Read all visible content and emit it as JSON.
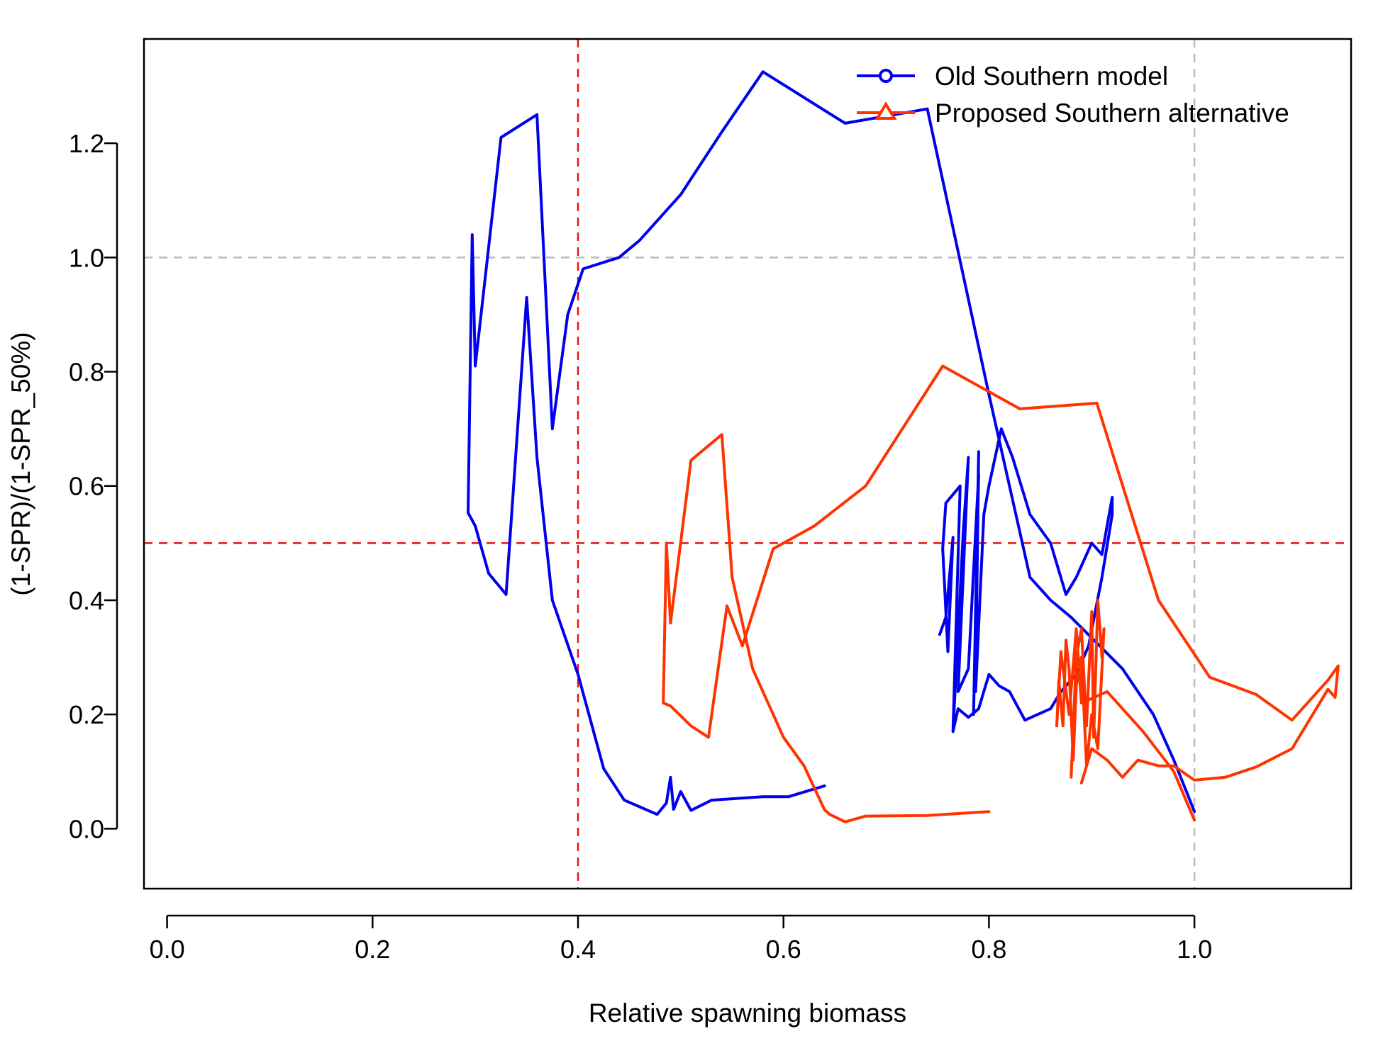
{
  "chart_data": {
    "type": "line",
    "title": "",
    "xlabel": "Relative spawning biomass",
    "ylabel": "(1-SPR)/(1-SPR_50%)",
    "xlim": [
      -0.0225,
      1.1525
    ],
    "ylim": [
      -0.105,
      1.3825
    ],
    "xticks": [
      0.0,
      0.2,
      0.4,
      0.6,
      0.8,
      1.0
    ],
    "xtick_labels": [
      "0.0",
      "0.2",
      "0.4",
      "0.6",
      "0.8",
      "1.0"
    ],
    "yticks": [
      0.0,
      0.2,
      0.4,
      0.6,
      0.8,
      1.0,
      1.2
    ],
    "ytick_labels": [
      "0.0",
      "0.2",
      "0.4",
      "0.6",
      "0.8",
      "1.0",
      "1.2"
    ],
    "grid": false,
    "legend_position": "top-right",
    "reference_lines": [
      {
        "orientation": "vertical",
        "value": 0.4,
        "color": "#ee1111",
        "style": "dashed"
      },
      {
        "orientation": "horizontal",
        "value": 0.5,
        "color": "#ee1111",
        "style": "dashed"
      },
      {
        "orientation": "vertical",
        "value": 1.0,
        "color": "#bbbbbb",
        "style": "dashed"
      },
      {
        "orientation": "horizontal",
        "value": 1.0,
        "color": "#bbbbbb",
        "style": "dashed"
      }
    ],
    "series": [
      {
        "name": "Old Southern model",
        "color": "#0000ee",
        "marker": "circle",
        "points": [
          [
            1.0,
            0.03
          ],
          [
            0.98,
            0.12
          ],
          [
            0.96,
            0.2
          ],
          [
            0.93,
            0.28
          ],
          [
            0.88,
            0.37
          ],
          [
            0.86,
            0.4
          ],
          [
            0.84,
            0.44
          ],
          [
            0.8,
            0.76
          ],
          [
            0.74,
            1.26
          ],
          [
            0.66,
            1.235
          ],
          [
            0.58,
            1.325
          ],
          [
            0.54,
            1.22
          ],
          [
            0.5,
            1.11
          ],
          [
            0.46,
            1.03
          ],
          [
            0.44,
            1.0
          ],
          [
            0.405,
            0.98
          ],
          [
            0.39,
            0.9
          ],
          [
            0.375,
            0.7
          ],
          [
            0.36,
            1.25
          ],
          [
            0.325,
            1.21
          ],
          [
            0.3,
            0.81
          ],
          [
            0.297,
            1.04
          ],
          [
            0.293,
            0.553
          ],
          [
            0.3,
            0.53
          ],
          [
            0.313,
            0.447
          ],
          [
            0.33,
            0.41
          ],
          [
            0.35,
            0.93
          ],
          [
            0.36,
            0.65
          ],
          [
            0.375,
            0.4
          ],
          [
            0.4,
            0.27
          ],
          [
            0.425,
            0.105
          ],
          [
            0.445,
            0.05
          ],
          [
            0.477,
            0.025
          ],
          [
            0.486,
            0.045
          ],
          [
            0.49,
            0.09
          ],
          [
            0.493,
            0.034
          ],
          [
            0.5,
            0.065
          ],
          [
            0.51,
            0.032
          ],
          [
            0.53,
            0.05
          ],
          [
            0.58,
            0.056
          ],
          [
            0.605,
            0.056
          ],
          [
            0.64,
            0.075
          ]
        ],
        "cluster": [
          [
            0.752,
            0.34
          ],
          [
            0.758,
            0.37
          ],
          [
            0.765,
            0.51
          ],
          [
            0.76,
            0.31
          ],
          [
            0.755,
            0.49
          ],
          [
            0.758,
            0.57
          ],
          [
            0.772,
            0.6
          ],
          [
            0.765,
            0.17
          ],
          [
            0.775,
            0.52
          ],
          [
            0.78,
            0.65
          ],
          [
            0.77,
            0.24
          ],
          [
            0.78,
            0.28
          ],
          [
            0.79,
            0.62
          ],
          [
            0.785,
            0.2
          ],
          [
            0.79,
            0.66
          ],
          [
            0.787,
            0.24
          ],
          [
            0.795,
            0.55
          ],
          [
            0.8,
            0.6
          ],
          [
            0.812,
            0.7
          ],
          [
            0.823,
            0.65
          ],
          [
            0.84,
            0.55
          ],
          [
            0.86,
            0.5
          ],
          [
            0.875,
            0.41
          ],
          [
            0.885,
            0.44
          ],
          [
            0.9,
            0.5
          ],
          [
            0.91,
            0.48
          ],
          [
            0.92,
            0.58
          ],
          [
            0.92,
            0.55
          ],
          [
            0.91,
            0.44
          ],
          [
            0.897,
            0.32
          ],
          [
            0.885,
            0.27
          ],
          [
            0.87,
            0.24
          ],
          [
            0.86,
            0.21
          ],
          [
            0.835,
            0.19
          ],
          [
            0.82,
            0.24
          ],
          [
            0.81,
            0.25
          ],
          [
            0.8,
            0.27
          ],
          [
            0.79,
            0.21
          ],
          [
            0.78,
            0.195
          ],
          [
            0.77,
            0.21
          ],
          [
            0.765,
            0.17
          ]
        ]
      },
      {
        "name": "Proposed Southern alternative",
        "color": "#ff3300",
        "marker": "triangle",
        "points": [
          [
            0.8,
            0.03
          ],
          [
            0.74,
            0.023
          ],
          [
            0.68,
            0.022
          ],
          [
            0.66,
            0.012
          ],
          [
            0.645,
            0.025
          ],
          [
            0.64,
            0.033
          ],
          [
            0.62,
            0.11
          ],
          [
            0.6,
            0.16
          ],
          [
            0.57,
            0.28
          ],
          [
            0.55,
            0.44
          ],
          [
            0.54,
            0.69
          ],
          [
            0.51,
            0.645
          ],
          [
            0.49,
            0.36
          ],
          [
            0.486,
            0.5
          ],
          [
            0.483,
            0.22
          ],
          [
            0.49,
            0.215
          ],
          [
            0.51,
            0.18
          ],
          [
            0.527,
            0.16
          ],
          [
            0.545,
            0.39
          ],
          [
            0.56,
            0.32
          ],
          [
            0.59,
            0.49
          ],
          [
            0.63,
            0.53
          ],
          [
            0.68,
            0.6
          ],
          [
            0.755,
            0.81
          ],
          [
            0.83,
            0.735
          ],
          [
            0.905,
            0.745
          ],
          [
            0.965,
            0.4
          ],
          [
            1.015,
            0.265
          ],
          [
            1.06,
            0.235
          ],
          [
            1.095,
            0.19
          ],
          [
            1.13,
            0.26
          ],
          [
            1.14,
            0.285
          ],
          [
            1.137,
            0.23
          ],
          [
            1.13,
            0.244
          ],
          [
            1.095,
            0.14
          ],
          [
            1.06,
            0.108
          ],
          [
            1.03,
            0.09
          ],
          [
            1.0,
            0.085
          ],
          [
            0.98,
            0.11
          ],
          [
            0.965,
            0.11
          ],
          [
            0.945,
            0.12
          ],
          [
            0.93,
            0.09
          ],
          [
            0.915,
            0.12
          ],
          [
            0.9,
            0.14
          ],
          [
            0.89,
            0.08
          ]
        ],
        "cluster": [
          [
            0.88,
            0.09
          ],
          [
            0.885,
            0.3
          ],
          [
            0.89,
            0.35
          ],
          [
            0.895,
            0.18
          ],
          [
            0.9,
            0.38
          ],
          [
            0.902,
            0.16
          ],
          [
            0.906,
            0.4
          ],
          [
            0.91,
            0.3
          ],
          [
            0.912,
            0.35
          ],
          [
            0.906,
            0.14
          ],
          [
            0.9,
            0.2
          ],
          [
            0.895,
            0.11
          ],
          [
            0.89,
            0.3
          ],
          [
            0.885,
            0.25
          ],
          [
            0.882,
            0.12
          ],
          [
            0.878,
            0.28
          ],
          [
            0.875,
            0.33
          ],
          [
            0.872,
            0.18
          ],
          [
            0.868,
            0.26
          ],
          [
            0.866,
            0.18
          ],
          [
            0.87,
            0.31
          ],
          [
            0.878,
            0.2
          ],
          [
            0.885,
            0.35
          ],
          [
            0.89,
            0.22
          ],
          [
            0.915,
            0.24
          ],
          [
            0.95,
            0.17
          ],
          [
            0.98,
            0.1
          ],
          [
            1.0,
            0.015
          ]
        ]
      }
    ]
  }
}
